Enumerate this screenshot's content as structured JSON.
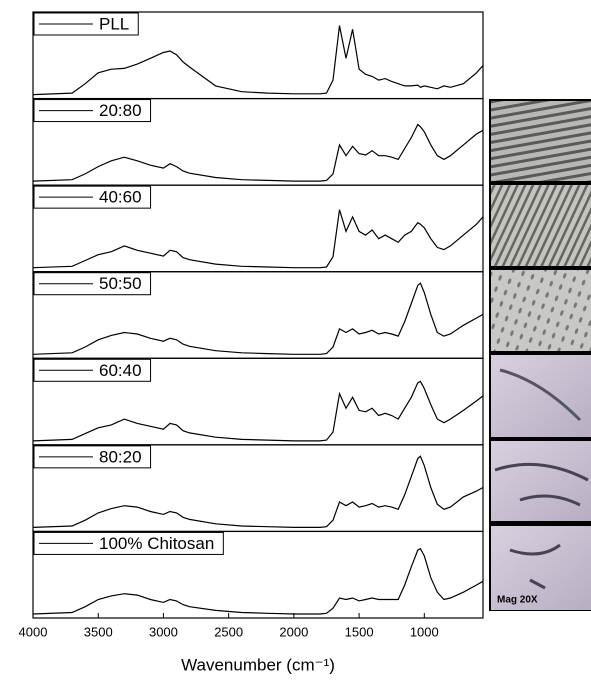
{
  "chart_data": {
    "type": "line",
    "xlabel": "Wavenumber (cm⁻¹)",
    "xlim": [
      4000,
      550
    ],
    "xticks": [
      4000,
      3500,
      3000,
      2500,
      2000,
      1500,
      1000
    ],
    "x": [
      4000,
      3700,
      3600,
      3500,
      3400,
      3300,
      3200,
      3100,
      3000,
      2950,
      2900,
      2850,
      2800,
      2600,
      2400,
      2200,
      2000,
      1800,
      1750,
      1700,
      1650,
      1600,
      1550,
      1500,
      1450,
      1400,
      1350,
      1300,
      1250,
      1200,
      1150,
      1100,
      1050,
      1030,
      1000,
      950,
      900,
      850,
      800,
      700,
      600,
      550
    ],
    "ylim": [
      0,
      1
    ],
    "color": "#000000",
    "series": [
      {
        "name": "PLL",
        "values": [
          0,
          0.02,
          0.15,
          0.3,
          0.35,
          0.36,
          0.42,
          0.5,
          0.58,
          0.6,
          0.55,
          0.45,
          0.38,
          0.12,
          0.04,
          0.02,
          0.01,
          0.01,
          0.02,
          0.2,
          0.95,
          0.5,
          0.9,
          0.35,
          0.28,
          0.25,
          0.2,
          0.22,
          0.18,
          0.15,
          0.12,
          0.12,
          0.13,
          0.1,
          0.12,
          0.1,
          0.08,
          0.12,
          0.1,
          0.15,
          0.3,
          0.4
        ]
      },
      {
        "name": "20:80",
        "values": [
          0,
          0.02,
          0.1,
          0.2,
          0.28,
          0.33,
          0.28,
          0.22,
          0.18,
          0.24,
          0.2,
          0.14,
          0.11,
          0.05,
          0.02,
          0.01,
          0,
          0,
          0.01,
          0.1,
          0.5,
          0.35,
          0.48,
          0.38,
          0.36,
          0.42,
          0.35,
          0.35,
          0.33,
          0.3,
          0.45,
          0.6,
          0.78,
          0.75,
          0.68,
          0.5,
          0.35,
          0.3,
          0.35,
          0.5,
          0.65,
          0.7
        ]
      },
      {
        "name": "40:60",
        "values": [
          0,
          0.02,
          0.1,
          0.18,
          0.22,
          0.3,
          0.24,
          0.2,
          0.16,
          0.24,
          0.22,
          0.14,
          0.11,
          0.05,
          0.02,
          0.01,
          0,
          0,
          0.01,
          0.15,
          0.8,
          0.5,
          0.7,
          0.5,
          0.45,
          0.52,
          0.4,
          0.45,
          0.4,
          0.35,
          0.45,
          0.5,
          0.62,
          0.6,
          0.55,
          0.4,
          0.28,
          0.25,
          0.3,
          0.45,
          0.6,
          0.7
        ]
      },
      {
        "name": "50:50",
        "values": [
          0,
          0.02,
          0.1,
          0.2,
          0.26,
          0.3,
          0.28,
          0.22,
          0.18,
          0.22,
          0.2,
          0.14,
          0.11,
          0.05,
          0.02,
          0.01,
          0,
          0,
          0.01,
          0.1,
          0.35,
          0.3,
          0.35,
          0.28,
          0.3,
          0.33,
          0.28,
          0.3,
          0.28,
          0.25,
          0.45,
          0.7,
          0.95,
          0.98,
          0.85,
          0.55,
          0.3,
          0.25,
          0.28,
          0.4,
          0.5,
          0.55
        ]
      },
      {
        "name": "60:40",
        "values": [
          0,
          0.02,
          0.1,
          0.18,
          0.22,
          0.3,
          0.24,
          0.2,
          0.16,
          0.24,
          0.22,
          0.14,
          0.11,
          0.05,
          0.02,
          0.01,
          0,
          0,
          0.01,
          0.12,
          0.65,
          0.45,
          0.6,
          0.42,
          0.4,
          0.45,
          0.35,
          0.38,
          0.35,
          0.3,
          0.45,
          0.6,
          0.8,
          0.82,
          0.72,
          0.5,
          0.3,
          0.25,
          0.3,
          0.42,
          0.55,
          0.62
        ]
      },
      {
        "name": "80:20",
        "values": [
          0,
          0.02,
          0.1,
          0.2,
          0.26,
          0.3,
          0.28,
          0.22,
          0.18,
          0.22,
          0.2,
          0.14,
          0.11,
          0.05,
          0.02,
          0.01,
          0,
          0,
          0.01,
          0.1,
          0.35,
          0.3,
          0.35,
          0.28,
          0.3,
          0.33,
          0.28,
          0.3,
          0.28,
          0.25,
          0.45,
          0.7,
          0.95,
          0.98,
          0.85,
          0.55,
          0.32,
          0.25,
          0.28,
          0.42,
          0.5,
          0.55
        ]
      },
      {
        "name": "100% Chitosan",
        "values": [
          0,
          0.02,
          0.1,
          0.2,
          0.25,
          0.28,
          0.26,
          0.2,
          0.16,
          0.2,
          0.18,
          0.13,
          0.1,
          0.05,
          0.02,
          0.01,
          0,
          0,
          0.01,
          0.08,
          0.22,
          0.2,
          0.22,
          0.18,
          0.2,
          0.22,
          0.2,
          0.2,
          0.2,
          0.2,
          0.4,
          0.65,
          0.88,
          0.9,
          0.8,
          0.5,
          0.3,
          0.2,
          0.22,
          0.3,
          0.4,
          0.45
        ]
      }
    ],
    "annotation": "Mag 20X"
  }
}
